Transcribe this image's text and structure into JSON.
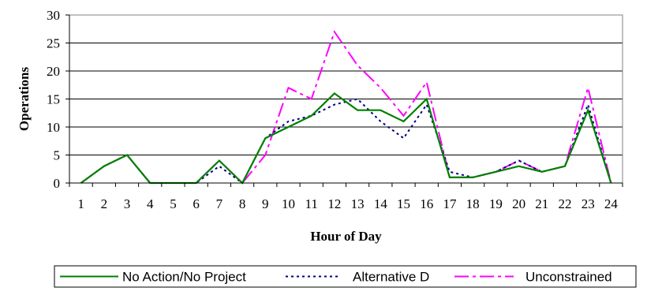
{
  "chart_data": {
    "type": "line",
    "title": "",
    "xlabel": "Hour of Day",
    "ylabel": "Operations",
    "categories": [
      "1",
      "2",
      "3",
      "4",
      "5",
      "6",
      "7",
      "8",
      "9",
      "10",
      "11",
      "12",
      "13",
      "14",
      "15",
      "16",
      "17",
      "18",
      "19",
      "20",
      "21",
      "22",
      "23",
      "24"
    ],
    "ylim": [
      0,
      30
    ],
    "yticks": [
      "0",
      "5",
      "10",
      "15",
      "20",
      "25",
      "30"
    ],
    "grid": "horizontal",
    "legend_position": "bottom",
    "series": [
      {
        "name": "No Action/No Project",
        "color": "#008000",
        "dash": "solid",
        "values": [
          0,
          3,
          5,
          0,
          0,
          0,
          4,
          0,
          8,
          10,
          12,
          16,
          13,
          13,
          11,
          15,
          1,
          1,
          2,
          3,
          2,
          3,
          13,
          0
        ]
      },
      {
        "name": "Alternative D",
        "color": "#000080",
        "dash": "dotted",
        "values": [
          0,
          3,
          5,
          0,
          0,
          0,
          3,
          0,
          8,
          11,
          12,
          14,
          15,
          11,
          8,
          14,
          2,
          1,
          2,
          4,
          2,
          3,
          14,
          0
        ]
      },
      {
        "name": "Unconstrained",
        "color": "#ff00ff",
        "dash": "dashdot",
        "values": [
          0,
          3,
          5,
          0,
          0,
          0,
          4,
          0,
          5,
          17,
          15,
          27,
          21,
          17,
          12,
          18,
          1,
          1,
          2,
          4,
          2,
          3,
          17,
          0
        ]
      }
    ]
  }
}
